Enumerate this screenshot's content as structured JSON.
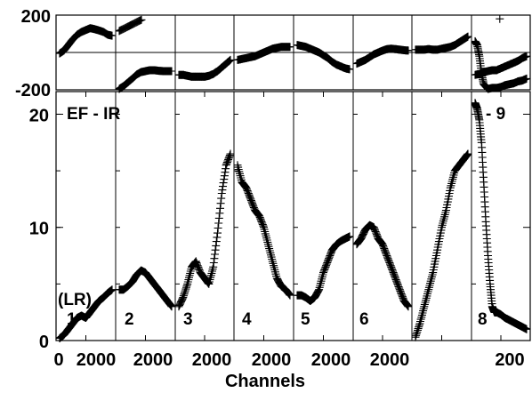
{
  "chart_data": [
    {
      "type": "scatter",
      "panel": "phase",
      "ylim": [
        -200,
        200
      ],
      "yticks": [
        200,
        -200
      ],
      "grid": true,
      "segments": [
        {
          "x": [
            0,
            200,
            400,
            600,
            800,
            1000,
            1200,
            1400,
            1600,
            1800,
            2000,
            2200,
            2400
          ],
          "y": [
            -5,
            10,
            40,
            70,
            95,
            110,
            120,
            130,
            125,
            118,
            110,
            95,
            90
          ]
        },
        {
          "x": [
            0,
            100,
            200,
            300,
            400
          ],
          "y": [
            115,
            130,
            145,
            160,
            175
          ]
        },
        {
          "x": [
            0,
            200,
            400,
            600,
            800,
            1000,
            1200,
            1400,
            1600,
            1800,
            2000,
            2200,
            2400
          ],
          "y": [
            -195,
            -180,
            -160,
            -140,
            -118,
            -105,
            -100,
            -95,
            -95,
            -98,
            -100,
            -100,
            -100
          ]
        },
        {
          "x": [
            0,
            200,
            400,
            600,
            800,
            1000,
            1200,
            1400,
            1600,
            1800,
            2000,
            2200,
            2400
          ],
          "y": [
            -120,
            -120,
            -125,
            -130,
            -130,
            -130,
            -130,
            -125,
            -115,
            -100,
            -80,
            -60,
            -40
          ]
        },
        {
          "x": [
            0,
            200,
            400,
            600,
            800,
            1000,
            1200,
            1400,
            1600,
            1800,
            2000,
            2200,
            2400
          ],
          "y": [
            -40,
            -35,
            -30,
            -25,
            -20,
            -10,
            0,
            10,
            20,
            25,
            30,
            30,
            30
          ]
        },
        {
          "x": [
            0,
            200,
            400,
            600,
            800,
            1000,
            1200,
            1400,
            1600,
            1800,
            2000,
            2200,
            2400
          ],
          "y": [
            40,
            35,
            30,
            20,
            10,
            0,
            -15,
            -30,
            -50,
            -65,
            -75,
            -85,
            -90
          ]
        },
        {
          "x": [
            0,
            200,
            400,
            600,
            800,
            1000,
            1200,
            1400,
            1600,
            1800,
            2000,
            2200,
            2400
          ],
          "y": [
            -60,
            -50,
            -40,
            -25,
            -10,
            0,
            10,
            18,
            20,
            18,
            15,
            12,
            10
          ]
        },
        {
          "x": [
            0,
            200,
            400,
            600,
            800,
            1000,
            1200,
            1400,
            1600,
            1800,
            2000,
            2200,
            2400
          ],
          "y": [
            15,
            15,
            15,
            18,
            15,
            15,
            20,
            25,
            30,
            40,
            55,
            70,
            85
          ]
        },
        {
          "x": [
            0,
            100,
            200,
            300,
            400,
            600,
            800,
            1000,
            1200,
            1400,
            1600,
            1800,
            2000,
            2200,
            2400
          ],
          "y": [
            60,
            40,
            -20,
            -110,
            -170,
            -195,
            -190,
            -190,
            -185,
            -175,
            -170,
            -165,
            -155,
            -150,
            -140
          ]
        },
        {
          "x": [
            1150
          ],
          "y": [
            180
          ]
        },
        {
          "x": [
            0,
            200,
            400,
            600,
            800,
            1000,
            1200,
            1400,
            1600,
            1800,
            2000,
            2200,
            2400
          ],
          "y": [
            -120,
            -115,
            -105,
            -100,
            -95,
            -95,
            -85,
            -75,
            -65,
            -55,
            -45,
            -30,
            -20
          ]
        }
      ]
    },
    {
      "type": "scatter",
      "panel": "amplitude",
      "xlabel": "Channels",
      "ylim": [
        0,
        22
      ],
      "yticks": [
        0,
        10,
        20
      ],
      "xtick_labels": [
        "0",
        "2000",
        "2000",
        "2000",
        "2000",
        "2000",
        "2000",
        "200"
      ],
      "grid": true,
      "annotations": [
        "EF - IR",
        "- 9",
        "(LR)",
        "1",
        "2",
        "3",
        "4",
        "5",
        "6",
        "8"
      ],
      "segments": [
        {
          "x": [
            0,
            200,
            400,
            600,
            800,
            1000,
            1200,
            1400,
            1600,
            1800,
            2000,
            2200,
            2400
          ],
          "y": [
            0.2,
            0.5,
            1.0,
            1.5,
            2.0,
            2.2,
            2.0,
            2.5,
            3.0,
            3.5,
            3.8,
            4.2,
            4.5
          ]
        },
        {
          "x": [
            0,
            200,
            400,
            600,
            800,
            1000,
            1200,
            1400,
            1600,
            1800,
            2000,
            2200,
            2400
          ],
          "y": [
            4.5,
            4.5,
            4.8,
            5.2,
            5.8,
            6.2,
            6.0,
            5.5,
            5.0,
            4.5,
            4.0,
            3.5,
            3.0
          ]
        },
        {
          "x": [
            0,
            200,
            400,
            600,
            800,
            1000,
            1200,
            1400,
            1600,
            1800,
            2000,
            2200,
            2400
          ],
          "y": [
            3.0,
            3.8,
            5.0,
            6.5,
            7.0,
            6.0,
            5.5,
            5.0,
            6.5,
            9.5,
            13.0,
            15.5,
            16.5
          ]
        },
        {
          "x": [
            0,
            200,
            400,
            600,
            800,
            1000,
            1200,
            1400,
            1600,
            1800,
            2000,
            2200,
            2400
          ],
          "y": [
            15.5,
            14.0,
            13.5,
            12.5,
            11.5,
            11.0,
            10.0,
            8.5,
            7.0,
            5.5,
            4.8,
            4.5,
            4.0
          ]
        },
        {
          "x": [
            0,
            200,
            400,
            600,
            800,
            1000,
            1200,
            1400,
            1600,
            1800,
            2000,
            2200,
            2400
          ],
          "y": [
            4.0,
            4.0,
            3.8,
            3.5,
            3.8,
            4.5,
            6.0,
            7.0,
            8.0,
            8.5,
            8.8,
            9.0,
            9.2
          ]
        },
        {
          "x": [
            0,
            200,
            400,
            600,
            800,
            1000,
            1200,
            1400,
            1600,
            1800,
            2000,
            2200,
            2400
          ],
          "y": [
            8.5,
            9.0,
            9.8,
            10.2,
            10.0,
            9.0,
            8.5,
            7.5,
            6.5,
            5.5,
            4.5,
            3.5,
            3.0
          ]
        },
        {
          "x": [
            0,
            200,
            400,
            600,
            800,
            1000,
            1200,
            1400,
            1600,
            1800,
            2000,
            2200,
            2400
          ],
          "y": [
            0.3,
            1.5,
            3.0,
            4.5,
            6.0,
            8.0,
            10.0,
            11.5,
            13.5,
            15.0,
            15.5,
            16.0,
            16.5
          ]
        },
        {
          "x": [
            0,
            100,
            200,
            300,
            400,
            500,
            600,
            700,
            800,
            900,
            1000,
            1200,
            1400,
            1600,
            1800,
            2000,
            2200,
            2400
          ],
          "y": [
            21.0,
            20.5,
            19.5,
            17.5,
            14.0,
            10.5,
            7.5,
            5.0,
            3.0,
            2.5,
            2.5,
            2.3,
            2.0,
            1.8,
            1.6,
            1.4,
            1.2,
            1.0
          ]
        }
      ]
    }
  ]
}
